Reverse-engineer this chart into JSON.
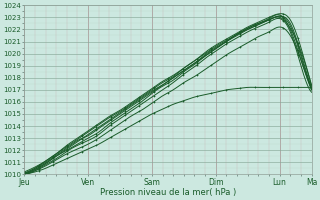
{
  "xlabel": "Pression niveau de la mer( hPa )",
  "ylim": [
    1010,
    1024
  ],
  "yticks": [
    1010,
    1011,
    1012,
    1013,
    1014,
    1015,
    1016,
    1017,
    1018,
    1019,
    1020,
    1021,
    1022,
    1023,
    1024
  ],
  "day_labels": [
    "Jeu",
    "Ven",
    "Sam",
    "Dim",
    "Lun",
    "Ma"
  ],
  "day_positions": [
    0,
    24,
    48,
    72,
    96,
    108
  ],
  "total_hours": 108,
  "bg_color": "#cce8e0",
  "grid_major_color": "#aaccbb",
  "grid_minor_color": "#bbddd0",
  "line_color": "#1a5c2a",
  "figsize": [
    3.2,
    2.0
  ],
  "dpi": 100,
  "series": [
    {
      "points_x": [
        0,
        4,
        8,
        12,
        16,
        20,
        24,
        28,
        32,
        36,
        40,
        44,
        48,
        52,
        56,
        60,
        64,
        68,
        72,
        76,
        80,
        84,
        88,
        92,
        96,
        100,
        104,
        108
      ],
      "points_y": [
        1010.1,
        1010.5,
        1011.0,
        1011.6,
        1012.2,
        1012.8,
        1013.2,
        1013.8,
        1014.4,
        1015.0,
        1015.6,
        1016.2,
        1016.8,
        1017.4,
        1018.0,
        1018.6,
        1019.2,
        1019.9,
        1020.5,
        1021.0,
        1021.5,
        1022.0,
        1022.4,
        1022.8,
        1023.1,
        1022.5,
        1020.0,
        1017.2
      ]
    },
    {
      "points_x": [
        0,
        4,
        8,
        12,
        16,
        20,
        24,
        28,
        32,
        36,
        40,
        44,
        48,
        52,
        56,
        60,
        64,
        68,
        72,
        76,
        80,
        84,
        88,
        92,
        96,
        100,
        104,
        108
      ],
      "points_y": [
        1010.0,
        1010.4,
        1010.9,
        1011.5,
        1012.0,
        1012.5,
        1013.0,
        1013.5,
        1014.2,
        1014.8,
        1015.4,
        1016.0,
        1016.7,
        1017.3,
        1017.8,
        1018.5,
        1019.1,
        1019.8,
        1020.4,
        1021.0,
        1021.6,
        1022.1,
        1022.5,
        1022.9,
        1023.2,
        1022.0,
        1019.5,
        1017.0
      ]
    },
    {
      "points_x": [
        0,
        4,
        8,
        12,
        16,
        20,
        24,
        28,
        32,
        36,
        40,
        44,
        48,
        52,
        56,
        60,
        64,
        68,
        72,
        76,
        80,
        84,
        88,
        92,
        96,
        100,
        104,
        108
      ],
      "points_y": [
        1010.2,
        1010.6,
        1011.1,
        1011.7,
        1012.3,
        1012.9,
        1013.5,
        1014.1,
        1014.7,
        1015.2,
        1015.8,
        1016.4,
        1017.0,
        1017.6,
        1018.1,
        1018.8,
        1019.4,
        1020.1,
        1020.7,
        1021.2,
        1021.7,
        1022.2,
        1022.6,
        1023.0,
        1023.3,
        1022.8,
        1020.5,
        1017.4
      ]
    },
    {
      "points_x": [
        0,
        4,
        8,
        12,
        16,
        20,
        24,
        28,
        32,
        36,
        40,
        44,
        48,
        52,
        56,
        60,
        64,
        68,
        72,
        76,
        80,
        84,
        88,
        92,
        96,
        100,
        104,
        108
      ],
      "points_y": [
        1010.0,
        1010.3,
        1010.8,
        1011.3,
        1011.9,
        1012.4,
        1012.8,
        1013.3,
        1014.0,
        1014.6,
        1015.2,
        1015.8,
        1016.4,
        1017.0,
        1017.6,
        1018.3,
        1018.9,
        1019.6,
        1020.2,
        1020.8,
        1021.3,
        1021.8,
        1022.2,
        1022.6,
        1022.9,
        1021.8,
        1019.0,
        1016.8
      ]
    },
    {
      "points_x": [
        0,
        4,
        8,
        12,
        16,
        20,
        24,
        28,
        32,
        36,
        40,
        44,
        48,
        52,
        56,
        60,
        64,
        68,
        72,
        76,
        80,
        84,
        88,
        92,
        96,
        100,
        104,
        108
      ],
      "points_y": [
        1010.1,
        1010.5,
        1011.1,
        1011.7,
        1012.4,
        1013.0,
        1013.6,
        1014.2,
        1014.8,
        1015.3,
        1015.9,
        1016.5,
        1017.1,
        1017.7,
        1018.2,
        1018.8,
        1019.4,
        1020.0,
        1020.6,
        1021.1,
        1021.6,
        1022.1,
        1022.5,
        1022.8,
        1023.1,
        1022.3,
        1019.8,
        1017.1
      ]
    },
    {
      "points_x": [
        0,
        4,
        8,
        12,
        16,
        20,
        24,
        28,
        32,
        36,
        40,
        44,
        48,
        52,
        56,
        60,
        64,
        68,
        72,
        76,
        80,
        84,
        88,
        92,
        96,
        100,
        104,
        108
      ],
      "points_y": [
        1010.0,
        1010.4,
        1010.9,
        1011.5,
        1012.1,
        1012.7,
        1013.3,
        1013.9,
        1014.5,
        1015.1,
        1015.7,
        1016.3,
        1016.9,
        1017.4,
        1018.0,
        1018.6,
        1019.2,
        1019.8,
        1020.4,
        1021.0,
        1021.6,
        1022.0,
        1022.4,
        1022.8,
        1023.0,
        1022.1,
        1020.2,
        1017.3
      ]
    },
    {
      "points_x": [
        0,
        4,
        8,
        12,
        16,
        20,
        24,
        28,
        32,
        36,
        40,
        44,
        48,
        52,
        56,
        60,
        64,
        68,
        72,
        76,
        80,
        84,
        88,
        92,
        96,
        100,
        104,
        108
      ],
      "points_y": [
        1010.0,
        1010.3,
        1010.7,
        1011.2,
        1011.7,
        1012.1,
        1012.5,
        1013.0,
        1013.6,
        1014.2,
        1014.8,
        1015.3,
        1015.9,
        1016.5,
        1017.0,
        1017.6,
        1018.1,
        1018.7,
        1019.3,
        1019.9,
        1020.4,
        1020.9,
        1021.4,
        1021.8,
        1022.2,
        1021.5,
        1019.5,
        1017.0
      ]
    },
    {
      "points_x": [
        0,
        4,
        8,
        12,
        16,
        20,
        24,
        28,
        32,
        36,
        40,
        44,
        48,
        52,
        56,
        60,
        64,
        68,
        72,
        76,
        80,
        84,
        88,
        92,
        96,
        100,
        104,
        108
      ],
      "points_y": [
        1010.0,
        1010.2,
        1010.5,
        1010.9,
        1011.3,
        1011.7,
        1012.1,
        1012.5,
        1013.0,
        1013.5,
        1014.0,
        1014.5,
        1015.0,
        1015.4,
        1015.8,
        1016.1,
        1016.4,
        1016.6,
        1016.8,
        1017.0,
        1017.1,
        1017.2,
        1017.2,
        1017.2,
        1017.2,
        1017.2,
        1017.2,
        1017.2
      ]
    }
  ]
}
